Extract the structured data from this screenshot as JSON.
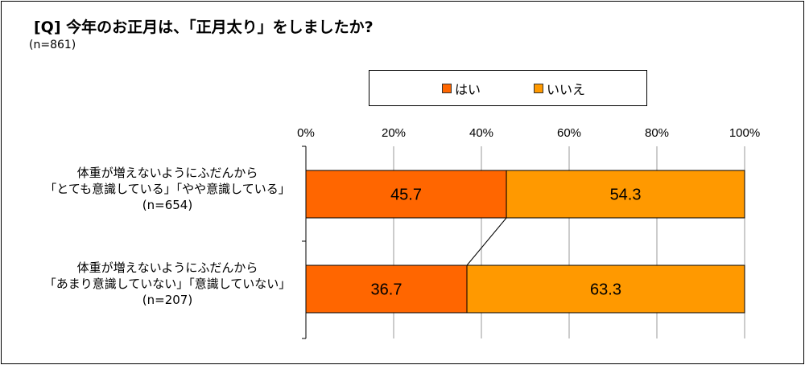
{
  "title": "[Q] 今年のお正月は、「正月太り」をしましたか?",
  "subtitle": "(n=861)",
  "colors": {
    "yes": "#FF6600",
    "no": "#FF9900",
    "grid": "#999999"
  },
  "legend": [
    {
      "label": "はい",
      "color": "#FF6600"
    },
    {
      "label": "いいえ",
      "color": "#FF9900"
    }
  ],
  "chart_data": {
    "type": "bar",
    "orientation": "horizontal",
    "stacked": true,
    "xlim": [
      0,
      100
    ],
    "ticks": [
      "0%",
      "20%",
      "40%",
      "60%",
      "80%",
      "100%"
    ],
    "categories": [
      {
        "line1": "体重が増えないようにふだんから",
        "line2": "「とても意識している」「やや意識している」",
        "n": "(n=654)"
      },
      {
        "line1": "体重が増えないようにふだんから",
        "line2": "「あまり意識していない」「意識していない」",
        "n": "(n=207)"
      }
    ],
    "series": [
      {
        "name": "はい",
        "values": [
          45.7,
          36.7
        ],
        "labels": [
          "45.7",
          "36.7"
        ]
      },
      {
        "name": "いいえ",
        "values": [
          54.3,
          63.3
        ],
        "labels": [
          "54.3",
          "63.3"
        ]
      }
    ],
    "grid": true,
    "legend_position": "top"
  }
}
